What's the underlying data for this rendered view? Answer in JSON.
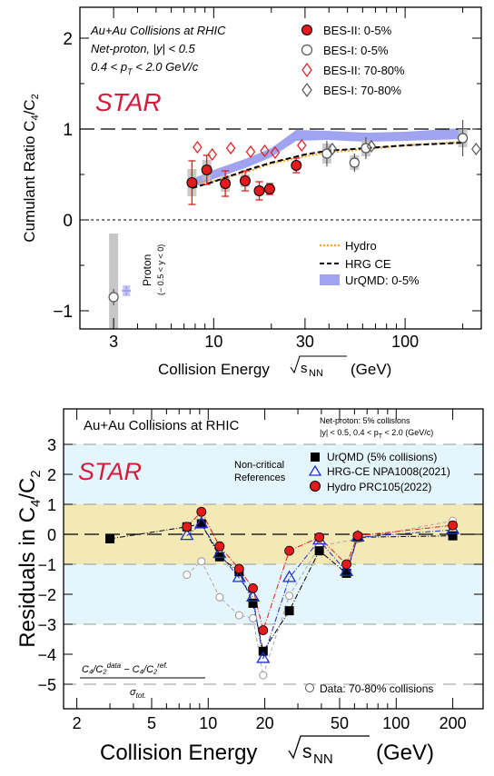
{
  "chart_data": [
    {
      "type": "scatter",
      "xscale": "log",
      "xlim": [
        2,
        250
      ],
      "ylim": [
        -1.2,
        2.25
      ],
      "xticks": [
        3,
        10,
        30,
        100
      ],
      "yticks": [
        -1,
        0,
        1,
        2
      ],
      "ytick_labels": [
        "−1",
        "0",
        "1",
        "2"
      ],
      "xlabel": "Collision Energy",
      "xlabel_unit": "(GeV)",
      "ylabel": "Cumulant Ratio C",
      "ylabel_sub4": "4",
      "ylabel_slash": "/C",
      "ylabel_sub2": "2",
      "info_lines": [
        "Au+Au Collisions at RHIC",
        "Net-proton, |y| < 0.5",
        "0.4 < p",
        "T",
        " < 2.0 GeV/c"
      ],
      "logo": "STAR",
      "proton_label": "Proton",
      "proton_sublabel": "(− 0.5 < y < 0)",
      "legend_top": [
        "BES-II: 0-5%",
        "BES-I: 0-5%",
        "BES-II: 70-80%",
        "BES-I: 70-80%"
      ],
      "legend_bottom": [
        "Hydro",
        "HRG CE",
        "UrQMD: 0-5%"
      ],
      "colors": {
        "red": "#e41a1c",
        "blue_band": "#9fa3f0",
        "hydro": "#f5a623",
        "grey": "#bdbdbd",
        "dark": "#555555"
      },
      "bes2_central": {
        "x": [
          7.7,
          9.2,
          11.5,
          14.6,
          17.3,
          19.6,
          27
        ],
        "y": [
          0.41,
          0.55,
          0.4,
          0.43,
          0.32,
          0.34,
          0.6
        ],
        "err": [
          0.24,
          0.16,
          0.14,
          0.11,
          0.1,
          0.06,
          0.08
        ],
        "sys": [
          0.15,
          0.11,
          0.09,
          0.07,
          0.05,
          0.04,
          0.03
        ]
      },
      "bes1_central": {
        "x": [
          39,
          54.4,
          62.4,
          200
        ],
        "y": [
          0.73,
          0.63,
          0.79,
          0.9
        ],
        "err": [
          0.14,
          0.1,
          0.12,
          0.2
        ],
        "sys": [
          0.11,
          0.08,
          0.09,
          0.1
        ]
      },
      "bes2_periph": {
        "x": [
          7.7,
          9.2,
          11.5,
          14.6,
          17.3,
          19.6,
          27
        ],
        "y": [
          0.8,
          0.72,
          0.79,
          0.75,
          0.76,
          0.74,
          0.82
        ]
      },
      "bes1_periph": {
        "x": [
          39,
          62.4,
          220
        ],
        "y": [
          0.78,
          0.81,
          0.78
        ]
      },
      "proton": {
        "x": [
          3,
          3.5
        ],
        "y": [
          -0.85,
          -0.78
        ],
        "err": [
          0.09,
          0.05
        ],
        "sys": [
          0.7,
          0.12
        ]
      },
      "hydro": {
        "x": [
          7.7,
          10,
          15,
          20,
          30,
          39,
          62.4,
          100,
          200
        ],
        "y": [
          0.4,
          0.43,
          0.53,
          0.62,
          0.7,
          0.74,
          0.78,
          0.82,
          0.86
        ]
      },
      "hrg_ce": {
        "x": [
          7.7,
          10,
          15,
          20,
          30,
          39,
          62.4,
          100,
          200
        ],
        "y": [
          0.35,
          0.42,
          0.55,
          0.63,
          0.72,
          0.76,
          0.79,
          0.82,
          0.85
        ]
      },
      "urqmd": {
        "x": [
          7.7,
          10,
          15,
          20,
          27,
          39,
          62.4,
          100,
          200
        ],
        "y": [
          0.4,
          0.5,
          0.63,
          0.74,
          0.93,
          0.93,
          0.91,
          0.92,
          0.95
        ],
        "band": [
          0.05,
          0.05,
          0.05,
          0.05,
          0.06,
          0.05,
          0.05,
          0.05,
          0.06
        ]
      }
    },
    {
      "type": "line",
      "xscale": "log",
      "xlim": [
        1.7,
        290
      ],
      "ylim": [
        -5.9,
        4.1
      ],
      "xticks": [
        2,
        5,
        10,
        20,
        50,
        100,
        200
      ],
      "yticks": [
        -5,
        -4,
        -3,
        -2,
        -1,
        0,
        1,
        2,
        3
      ],
      "xlabel": "Collision Energy",
      "xlabel_unit": "(GeV)",
      "ylabel": "Residuals in C",
      "ylabel_sub4": "4",
      "ylabel_slash": "/C",
      "ylabel_sub2": "2",
      "title": "Au+Au Collisions at RHIC",
      "note_lines": [
        "Net-proton: 5% collisions",
        "|y| < 0.5, 0.4 < p",
        "T",
        " < 2.0 (GeV/c)"
      ],
      "logo": "STAR",
      "refs_label": [
        "Non-critical",
        "References"
      ],
      "legend": [
        "UrQMD (5% collisions)",
        "HRG-CE NPA1008(2021)",
        "Hydro PRC105(2022)"
      ],
      "data_legend": "Data: 70-80% collisions",
      "formula": {
        "num": "C₄/C₂",
        "sup_data": "data",
        "minus": " − C₄/C₂",
        "sup_ref": "ref.",
        "den": "σ",
        "den_sub": "tot."
      },
      "bands": [
        {
          "from": -1,
          "to": 1,
          "color": "#f3e9b6"
        },
        {
          "from": -3,
          "to": 3,
          "color": "#e4f5fb"
        }
      ],
      "urqmd": {
        "x": [
          3,
          7.7,
          9.2,
          11.5,
          14.6,
          17.3,
          19.6,
          27,
          39,
          54.4,
          62.4,
          200
        ],
        "y": [
          -0.15,
          0.25,
          0.35,
          -0.75,
          -1.25,
          -2.3,
          -3.9,
          -2.55,
          -0.55,
          -1.3,
          -0.1,
          -0.05
        ]
      },
      "hrg": {
        "x": [
          7.7,
          9.2,
          11.5,
          14.6,
          17.3,
          19.6,
          27,
          39,
          54.4,
          62.4,
          200
        ],
        "y": [
          -0.05,
          0.35,
          -0.65,
          -1.45,
          -2.1,
          -4.15,
          -1.45,
          -0.2,
          -1.25,
          -0.1,
          0.15
        ]
      },
      "hydro": {
        "x": [
          7.7,
          9.2,
          11.5,
          14.6,
          17.3,
          19.6,
          27,
          39,
          54.4,
          62.4,
          200
        ],
        "y": [
          0.25,
          0.75,
          -0.4,
          -1.15,
          -1.8,
          -3.2,
          -0.55,
          -0.1,
          -1.0,
          -0.05,
          0.3
        ]
      },
      "periph": {
        "x": [
          7.7,
          9.2,
          11.5,
          14.6,
          17.3,
          19.6,
          27,
          39,
          62.4,
          200
        ],
        "y": [
          -1.35,
          -0.9,
          -2.1,
          -2.7,
          -2.8,
          -4.7,
          -2.05,
          -0.4,
          -0.15,
          0.45
        ]
      }
    }
  ]
}
